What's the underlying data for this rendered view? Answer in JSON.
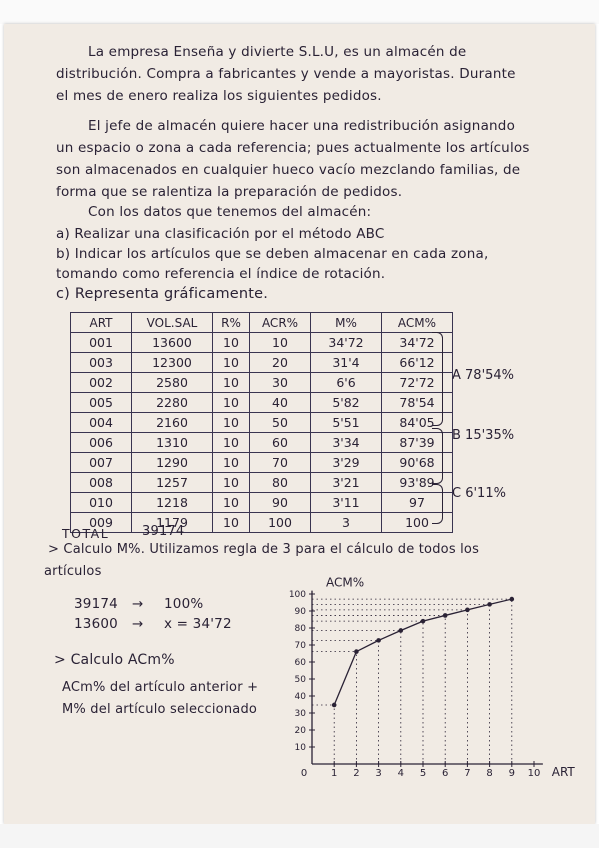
{
  "lines": {
    "p1": [
      "La empresa Enseña y divierte S.L.U, es un almacén de",
      "distribución. Compra a fabricantes y vende a mayoristas. Durante",
      "el mes de enero realiza los siguientes pedidos."
    ],
    "p2": [
      "El jefe de almacén quiere hacer una redistribución asignando",
      "un espacio o zona a cada referencia; pues actualmente los artículos",
      "son almacenados en cualquier hueco vacío mezclando familias, de",
      "forma que se ralentiza la preparación de pedidos."
    ],
    "p3": "Con los datos que tenemos del almacén:",
    "items": [
      "a) Realizar una clasificación por el método ABC",
      "b) Indicar los artículos que se deben almacenar en cada zona,",
      "tomando como referencia el índice de rotación.",
      "c) Representa gráficamente."
    ]
  },
  "table": {
    "headers": [
      "ART",
      "VOL.SAL",
      "R%",
      "ACR%",
      "M%",
      "ACM%"
    ],
    "rows": [
      [
        "001",
        "13600",
        "10",
        "10",
        "34'72",
        "34'72"
      ],
      [
        "003",
        "12300",
        "10",
        "20",
        "31'4",
        "66'12"
      ],
      [
        "002",
        "2580",
        "10",
        "30",
        "6'6",
        "72'72"
      ],
      [
        "005",
        "2280",
        "10",
        "40",
        "5'82",
        "78'54"
      ],
      [
        "004",
        "2160",
        "10",
        "50",
        "5'51",
        "84'05"
      ],
      [
        "006",
        "1310",
        "10",
        "60",
        "3'34",
        "87'39"
      ],
      [
        "007",
        "1290",
        "10",
        "70",
        "3'29",
        "90'68"
      ],
      [
        "008",
        "1257",
        "10",
        "80",
        "3'21",
        "93'89"
      ],
      [
        "010",
        "1218",
        "10",
        "90",
        "3'11",
        "97"
      ],
      [
        "009",
        "1179",
        "10",
        "100",
        "3",
        "100"
      ]
    ],
    "total_label": "TOTAL",
    "total_value": "39174"
  },
  "groups": {
    "a": "A 78'54%",
    "b": "B 15'35%",
    "c": "C 6'11%"
  },
  "calc": {
    "m_title": "> Calculo M%. Utilizamos regla de 3 para el cálculo de todos los",
    "m_title2": "artículos",
    "row1_left": "39174",
    "row1_arrow": "→",
    "row1_right": "100%",
    "row2_left": "13600",
    "row2_arrow": "→",
    "row2_right": "x = 34'72",
    "acm_title": "> Calculo ACm%",
    "acm_desc1": "ACm% del artículo anterior +",
    "acm_desc2": "M% del artículo seleccionado"
  },
  "chart_data": {
    "type": "line",
    "title": "",
    "ylabel": "ACM%",
    "xlabel": "ART",
    "x_ticks": [
      "0",
      "1",
      "2",
      "3",
      "4",
      "5",
      "6",
      "7",
      "8",
      "9",
      "10"
    ],
    "y_ticks": [
      "0",
      "10",
      "20",
      "30",
      "40",
      "50",
      "60",
      "70",
      "80",
      "90",
      "100"
    ],
    "xlim": [
      0,
      10
    ],
    "ylim": [
      0,
      100
    ],
    "x": [
      1,
      2,
      3,
      4,
      5,
      6,
      7,
      8,
      9
    ],
    "values": [
      34.72,
      66.12,
      72.72,
      78.54,
      84.05,
      87.39,
      90.68,
      93.89,
      97
    ],
    "grid": "dotted"
  },
  "colors": {
    "ink": "#2a2235",
    "paper": "#f1ebe4"
  }
}
